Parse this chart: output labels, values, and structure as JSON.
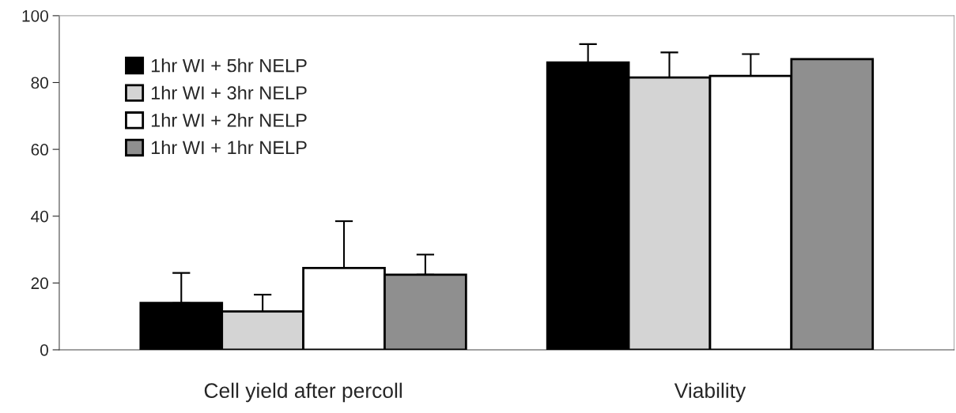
{
  "chart_data": {
    "type": "bar",
    "categories": [
      "Cell yield after percoll",
      "Viability"
    ],
    "series": [
      {
        "name": "1hr WI + 5hr NELP",
        "color": "#000000",
        "values": [
          14,
          86
        ],
        "errors": [
          [
            14,
            23
          ],
          [
            86,
            91.5
          ]
        ]
      },
      {
        "name": "1hr WI + 3hr NELP",
        "color": "#d4d4d4",
        "values": [
          11.5,
          81.5
        ],
        "errors": [
          [
            11.5,
            16.5
          ],
          [
            81.5,
            89
          ]
        ]
      },
      {
        "name": "1hr WI + 2hr NELP",
        "color": "#ffffff",
        "values": [
          24.5,
          82
        ],
        "errors": [
          [
            24.5,
            38.5
          ],
          [
            82,
            88.5
          ]
        ]
      },
      {
        "name": "1hr WI + 1hr NELP",
        "color": "#8f8f8f",
        "values": [
          22.5,
          87
        ],
        "errors": [
          [
            22.5,
            28.5
          ],
          null
        ]
      }
    ],
    "ylim": [
      0,
      100
    ],
    "yticks": [
      0,
      20,
      40,
      60,
      80,
      100
    ],
    "legend": "top left",
    "grid": false
  }
}
